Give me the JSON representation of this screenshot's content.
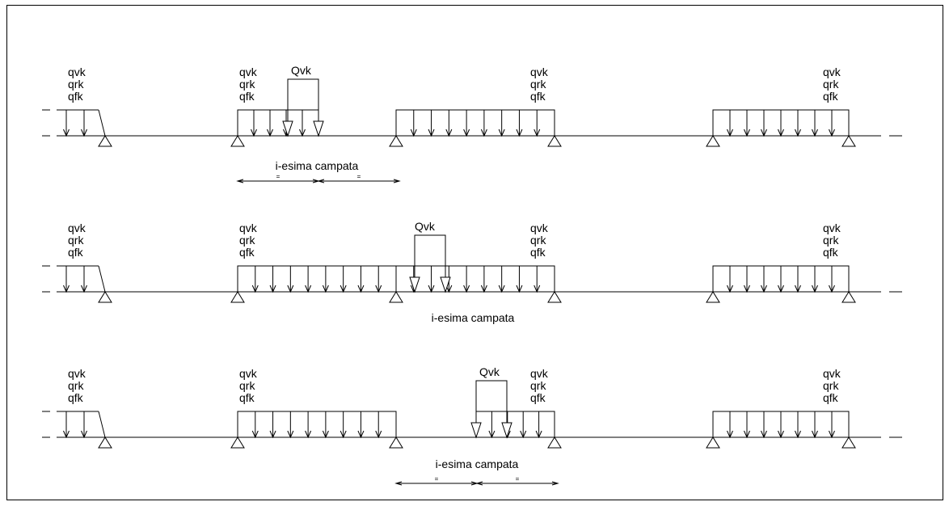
{
  "labels": {
    "qvk": "qvk",
    "qrk": "qrk",
    "qfk": "qfk",
    "concentrated_load": "Qvk",
    "span_caption": "i-esima campata",
    "equal_mark": "="
  },
  "rows": [
    {
      "name": "row-1",
      "loaded_spans": [
        "left-overhang",
        "span-1-partial",
        "span-2",
        "span-4"
      ],
      "qvk_span": "span-1",
      "caption_under": "span-1",
      "has_dimension": true
    },
    {
      "name": "row-2",
      "loaded_spans": [
        "left-overhang",
        "span-1",
        "span-2",
        "span-4"
      ],
      "qvk_span": "span-2",
      "caption_under": "span-2",
      "has_dimension": false
    },
    {
      "name": "row-3",
      "loaded_spans": [
        "left-overhang",
        "span-1",
        "span-2-partial",
        "span-4"
      ],
      "qvk_span": "span-2",
      "caption_under": "span-2",
      "has_dimension": true
    }
  ]
}
